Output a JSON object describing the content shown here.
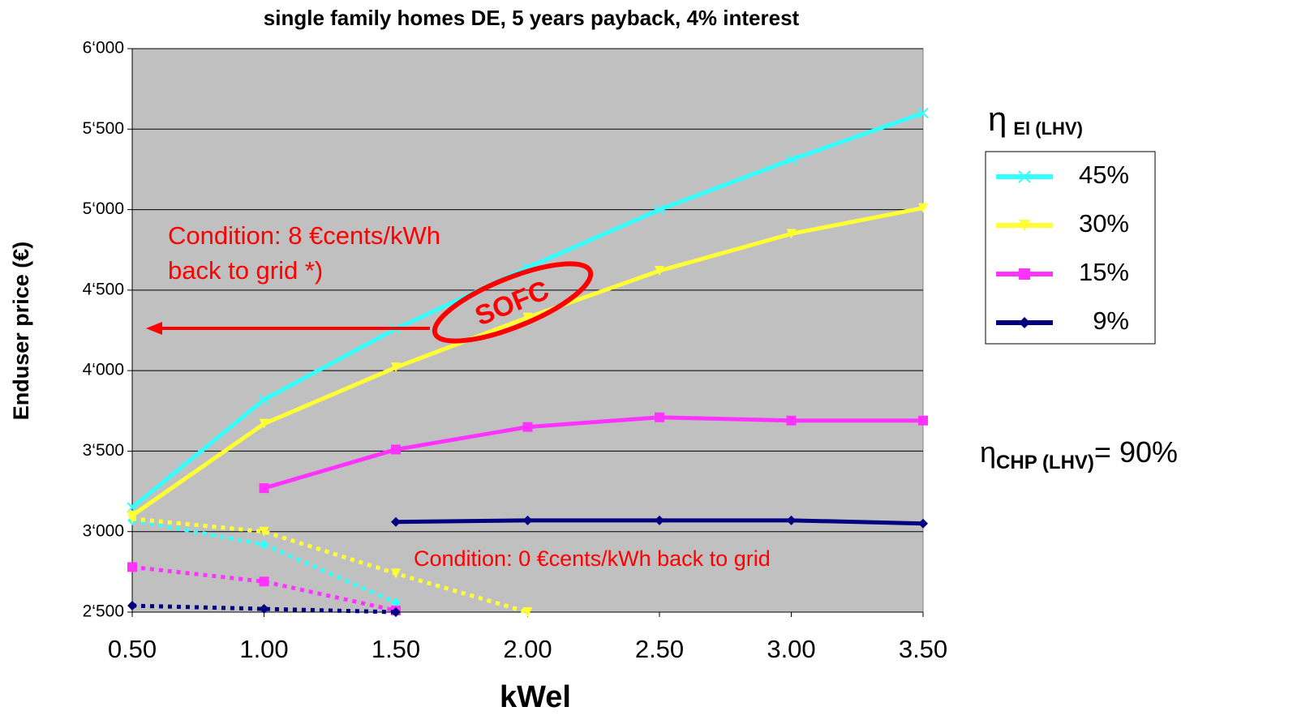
{
  "chart_data": {
    "type": "line",
    "title": "single family homes DE, 5 years payback, 4% interest",
    "y_label": "Enduser price (€)",
    "x_label": "kWel",
    "x": [
      0.5,
      1.0,
      1.5,
      2.0,
      2.5,
      3.0,
      3.5
    ],
    "xlim": [
      0.5,
      3.5
    ],
    "xticks": [
      {
        "value": 0.5,
        "label": "0.50"
      },
      {
        "value": 1.0,
        "label": "1.00"
      },
      {
        "value": 1.5,
        "label": "1.50"
      },
      {
        "value": 2.0,
        "label": "2.00"
      },
      {
        "value": 2.5,
        "label": "2.50"
      },
      {
        "value": 3.0,
        "label": "3.00"
      },
      {
        "value": 3.5,
        "label": "3.50"
      }
    ],
    "ylim": [
      2500,
      6000
    ],
    "yticks": [
      {
        "value": 2500,
        "label": "2‘500"
      },
      {
        "value": 3000,
        "label": "3‘000"
      },
      {
        "value": 3500,
        "label": "3‘500"
      },
      {
        "value": 4000,
        "label": "4‘000"
      },
      {
        "value": 4500,
        "label": "4‘500"
      },
      {
        "value": 5000,
        "label": "5‘000"
      },
      {
        "value": 5500,
        "label": "5‘500"
      },
      {
        "value": 6000,
        "label": "6‘000"
      }
    ],
    "grid": true,
    "legend_title": {
      "symbol": "η",
      "subscript": "El (LHV)"
    },
    "series": [
      {
        "name": "45%",
        "color": "#33ffff",
        "marker": "x",
        "values": [
          3150,
          3820,
          4260,
          4640,
          5000,
          5310,
          5600
        ]
      },
      {
        "name": "30%",
        "color": "#ffff33",
        "marker": "triangle-down",
        "values": [
          3100,
          3670,
          4020,
          4330,
          4620,
          4850,
          5010
        ]
      },
      {
        "name": "15%",
        "color": "#ff33ff",
        "marker": "square",
        "values": [
          null,
          3270,
          3510,
          3650,
          3710,
          3690,
          3690
        ]
      },
      {
        "name": "9%",
        "color": "#000080",
        "marker": "diamond",
        "values": [
          null,
          null,
          3060,
          3070,
          3070,
          3070,
          3050
        ]
      }
    ],
    "dotted_series": [
      {
        "color": "#33ffff",
        "marker": "diamond",
        "values": [
          3070,
          2920,
          2560,
          null,
          null,
          null,
          null
        ]
      },
      {
        "color": "#ffff33",
        "marker": "triangle-down",
        "values": [
          3080,
          3000,
          2740,
          2500,
          null,
          null,
          null
        ]
      },
      {
        "color": "#ff33ff",
        "marker": "square",
        "values": [
          2780,
          2690,
          2510,
          null,
          null,
          null,
          null
        ]
      },
      {
        "color": "#000080",
        "marker": "diamond",
        "values": [
          2540,
          2520,
          2500,
          null,
          null,
          null,
          null
        ]
      }
    ],
    "annotations": {
      "condition_8": [
        "Condition: 8 €cents/kWh",
        "back to grid *)"
      ],
      "sofc": "SOFC",
      "condition_0": "Condition: 0 €cents/kWh back to grid",
      "chp": {
        "symbol": "η",
        "subscript": "CHP (LHV)",
        "text": "= 90%"
      }
    }
  }
}
